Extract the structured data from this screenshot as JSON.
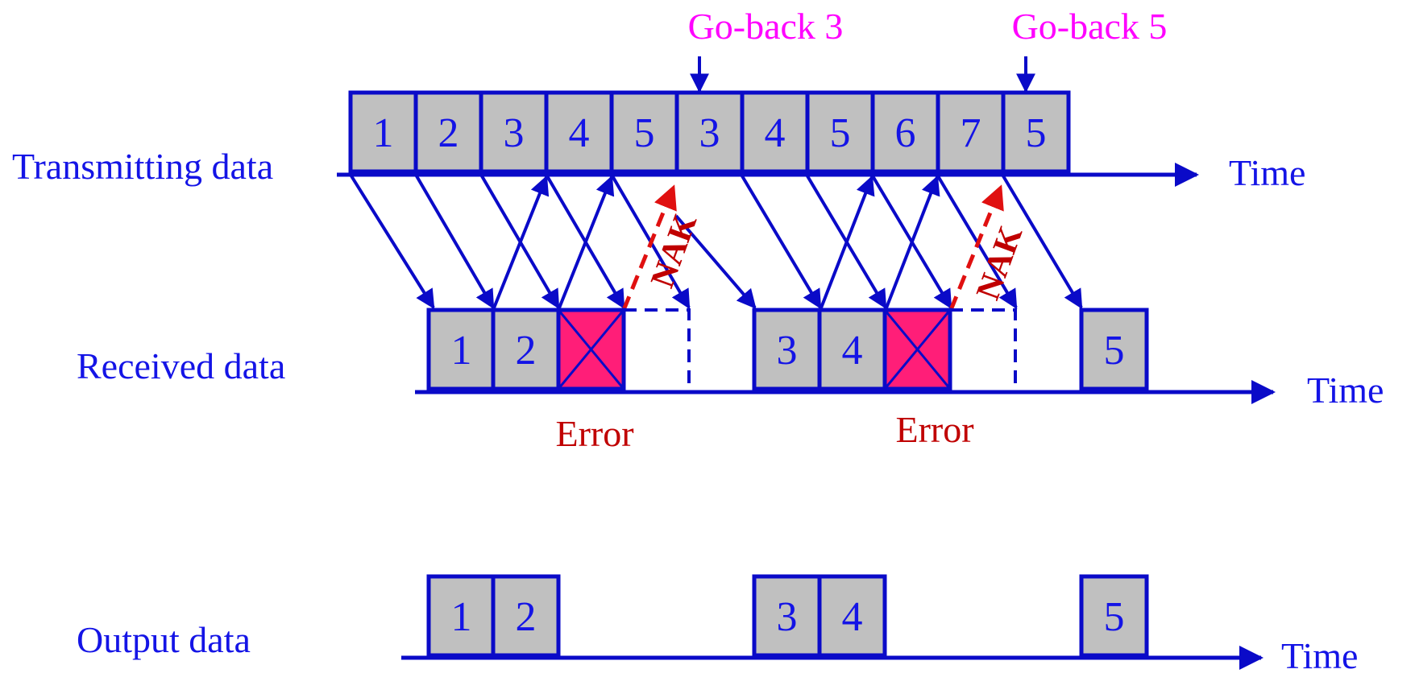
{
  "labels": {
    "go_back_1": "Go-back 3",
    "go_back_2": "Go-back 5",
    "transmitting": "Transmitting data",
    "received": "Received data",
    "output": "Output data",
    "time": "Time",
    "error": "Error",
    "nak": "NAK"
  },
  "transmit_frames": [
    "1",
    "2",
    "3",
    "4",
    "5",
    "3",
    "4",
    "5",
    "6",
    "7",
    "5"
  ],
  "received_frames": [
    {
      "label": "1",
      "status": "ok"
    },
    {
      "label": "2",
      "status": "ok"
    },
    {
      "label": "",
      "status": "error"
    },
    {
      "label": "",
      "status": "discarded"
    },
    {
      "label": "3",
      "status": "ok"
    },
    {
      "label": "4",
      "status": "ok"
    },
    {
      "label": "",
      "status": "error"
    },
    {
      "label": "",
      "status": "discarded"
    },
    {
      "label": "5",
      "status": "ok"
    }
  ],
  "output_frames": [
    "1",
    "2",
    "3",
    "4",
    "5"
  ],
  "colors": {
    "line": "#0a0ac8",
    "text": "#1414e6",
    "frame_fill": "#c0c0c0",
    "error_fill": "#ff1e78",
    "error_text": "#c00000",
    "goback_text": "#ff00ff",
    "nak": "#e01010",
    "nak_text": "#c00000"
  }
}
